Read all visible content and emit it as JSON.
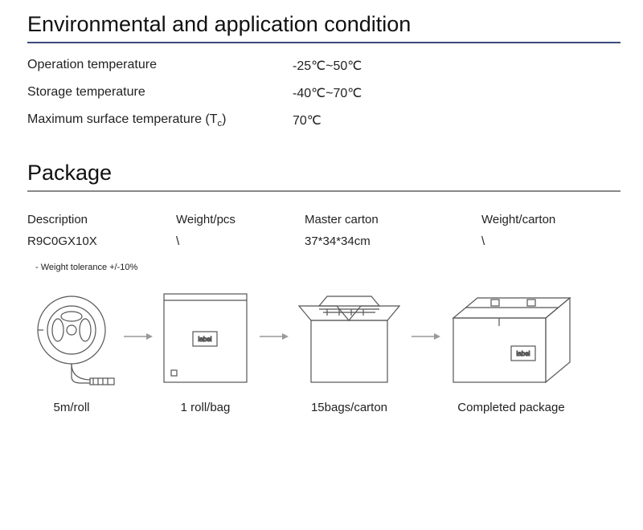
{
  "env": {
    "title": "Environmental and application condition",
    "title_underline_color": "#3b4a7a",
    "rows": [
      {
        "label": "Operation temperature",
        "value": "-25℃~50℃"
      },
      {
        "label": "Storage temperature",
        "value": "-40℃~70℃"
      },
      {
        "label_html": "Maximum surface temperature (T<sub>c</sub>)",
        "value": "70℃"
      }
    ]
  },
  "pkg": {
    "title": "Package",
    "title_underline_color": "#888",
    "columns": [
      "Description",
      "Weight/pcs",
      "Master carton",
      "Weight/carton"
    ],
    "row": [
      "R9C0GX10X",
      "\\",
      "37*34*34cm",
      "\\"
    ],
    "tolerance_note": "- Weight tolerance +/-10%",
    "flow": {
      "arrow_color": "#999",
      "stroke_color": "#555",
      "label_text": "label",
      "steps": [
        {
          "caption": "5m/roll"
        },
        {
          "caption": "1 roll/bag"
        },
        {
          "caption": "15bags/carton"
        },
        {
          "caption": "Completed package"
        }
      ]
    }
  }
}
